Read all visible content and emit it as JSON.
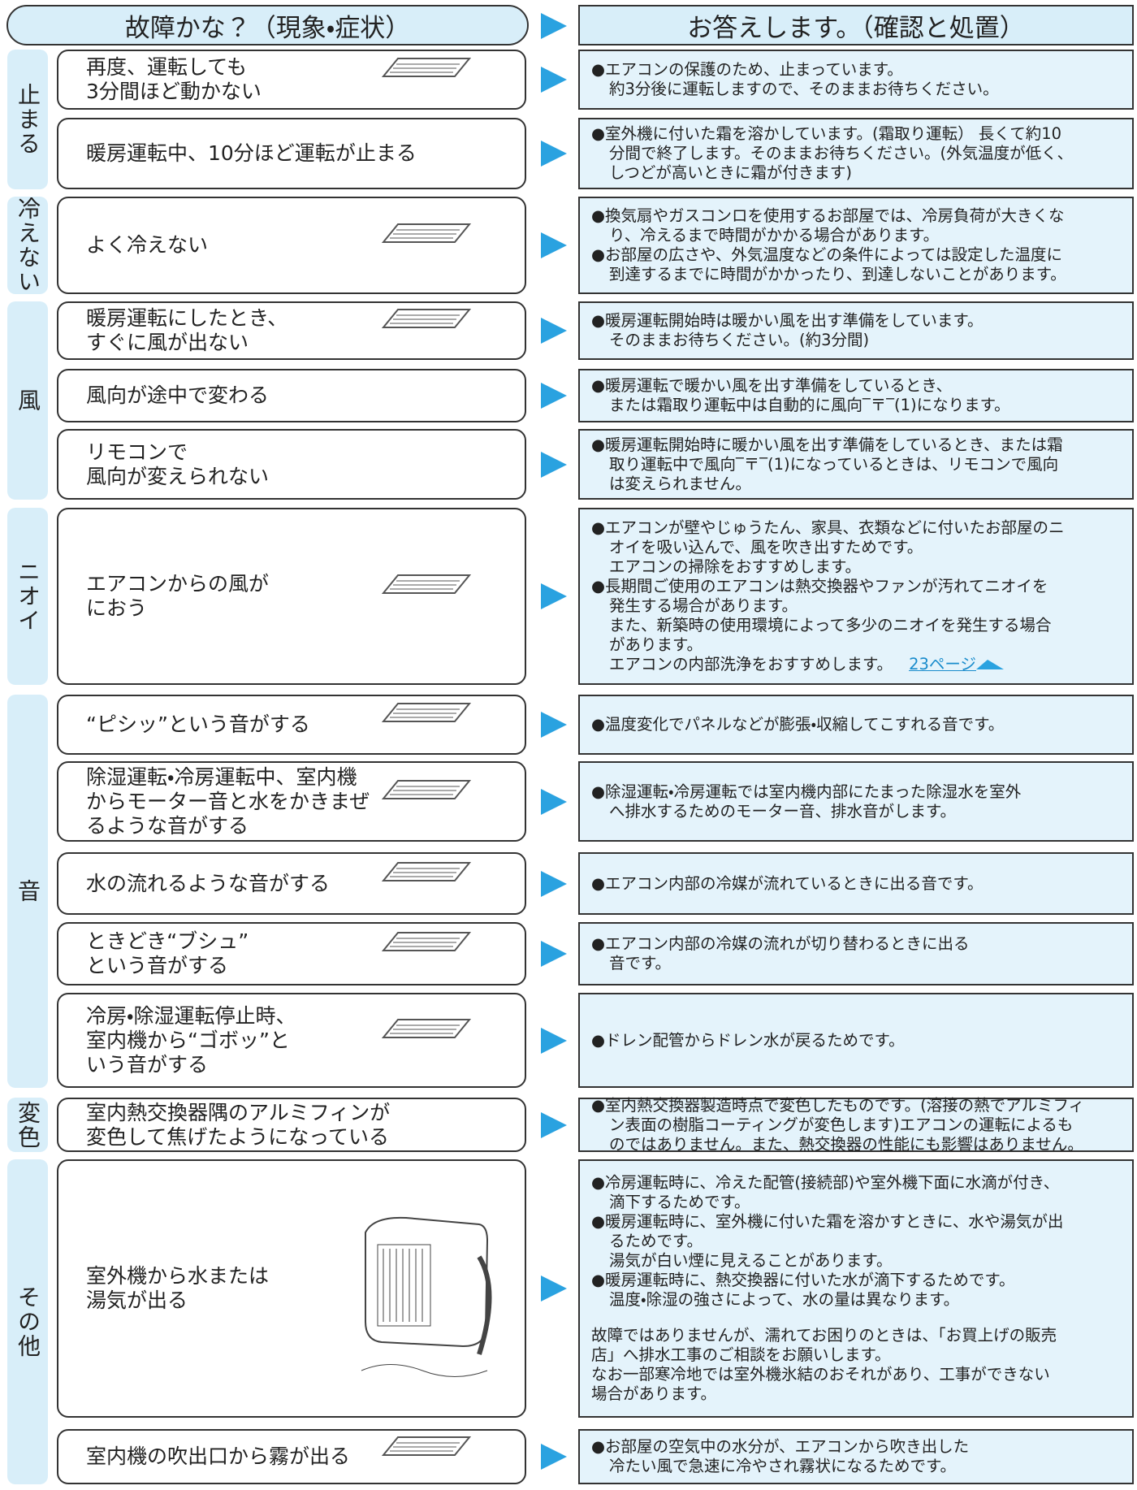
{
  "header": {
    "left": "故障かな？（現象・症状）",
    "right": "お答えします。（確認と処置）"
  },
  "groups": [
    {
      "label": "止まる",
      "rows": [
        {
          "symptom": [
            "再度、運転しても",
            "3分間ほど動かない"
          ],
          "answer": [
            "●エアコンの保護のため、止まっています。",
            "約3分後に運転しますので、そのままお待ちください。"
          ]
        },
        {
          "symptom": [
            "暖房運転中、10分ほど運転が止まる"
          ],
          "answer": [
            "●室外機に付いた霜を溶かしています。(霜取り運転） 長くて約10",
            "分間で終了します。そのままお待ちください。(外気温度が低く、",
            "しつどが高いときに霜が付きます)"
          ]
        }
      ]
    },
    {
      "label": "冷えない",
      "rows": [
        {
          "symptom": [
            "よく冷えない"
          ],
          "answer": [
            "●換気扇やガスコンロを使用するお部屋では、冷房負荷が大きくな",
            "り、冷えるまで時間がかかる場合があります。",
            "●お部屋の広さや、外気温度などの条件によっては設定した温度に",
            "到達するまでに時間がかかったり、到達しないことがあります。"
          ]
        }
      ]
    },
    {
      "label": "風",
      "rows": [
        {
          "symptom": [
            "暖房運転にしたとき、",
            "すぐに風が出ない"
          ],
          "answer": [
            "●暖房運転開始時は暖かい風を出す準備をしています。",
            "そのままお待ちください。(約3分間)"
          ]
        },
        {
          "symptom": [
            "風向が途中で変わる"
          ],
          "answer": [
            "●暖房運転で暖かい風を出す準備をしているとき、",
            "または霜取り運転中は自動的に風向‾〒‾(1)になります。"
          ]
        },
        {
          "symptom": [
            "リモコンで",
            "風向が変えられない"
          ],
          "answer": [
            "●暖房運転開始時に暖かい風を出す準備をしているとき、または霜",
            "取り運転中で風向‾〒‾(1)になっているときは、リモコンで風向",
            "は変えられません。"
          ]
        }
      ]
    },
    {
      "label": "ニオイ",
      "rows": [
        {
          "symptom": [
            "エアコンからの風が",
            "におう"
          ],
          "answer": [
            "●エアコンが壁やじゅうたん、家具、衣類などに付いたお部屋のニ",
            "オイを吸い込んで、風を吹き出すためです。",
            "エアコンの掃除をおすすめします。",
            "●長期間ご使用のエアコンは熱交換器やファンが汚れてニオイを",
            "発生する場合があります。",
            "また、新築時の使用環境によって多少のニオイを発生する場合",
            "があります。",
            "エアコンの内部洗浄をおすすめします。"
          ],
          "link": "23ページ"
        }
      ]
    },
    {
      "label": "音",
      "rows": [
        {
          "symptom": [
            "“ピシッ”という音がする"
          ],
          "answer": [
            "●温度変化でパネルなどが膨張・収縮してこすれる音です。"
          ]
        },
        {
          "symptom": [
            "除湿運転・冷房運転中、室内機",
            "からモーター音と水をかきまぜ",
            "るような音がする"
          ],
          "answer": [
            "●除湿運転・冷房運転では室内機内部にたまった除湿水を室外",
            "へ排水するためのモーター音、排水音がします。"
          ]
        },
        {
          "symptom": [
            "水の流れるような音がする"
          ],
          "answer": [
            "●エアコン内部の冷媒が流れているときに出る音です。"
          ]
        },
        {
          "symptom": [
            "ときどき“ブシュ”",
            "という音がする"
          ],
          "answer": [
            "●エアコン内部の冷媒の流れが切り替わるときに出る",
            "音です。"
          ]
        },
        {
          "symptom": [
            "冷房・除湿運転停止時、",
            "室内機から“ゴボッ”と",
            "いう音がする"
          ],
          "answer": [
            "●ドレン配管からドレン水が戻るためです。"
          ]
        }
      ]
    },
    {
      "label": "変色",
      "rows": [
        {
          "symptom": [
            "室内熱交換器隅のアルミフィンが",
            "変色して焦げたようになっている"
          ],
          "answer": [
            "●室内熱交換器製造時点で変色したものです。(溶接の熱でアルミフィ",
            "ン表面の樹脂コーティングが変色します)エアコンの運転によるも",
            "のではありません。また、熱交換器の性能にも影響はありません。"
          ]
        }
      ]
    },
    {
      "label": "その他",
      "rows": [
        {
          "symptom": [
            "室外機から水または",
            "湯気が出る"
          ],
          "answer": [
            "●冷房運転時に、冷えた配管(接続部)や室外機下面に水滴が付き、",
            "滴下するためです。",
            "●暖房運転時に、室外機に付いた霜を溶かすときに、水や湯気が出",
            "るためです。",
            "湯気が白い煙に見えることがあります。",
            "●暖房運転時に、熱交換器に付いた水が滴下するためです。",
            "温度・除湿の強さによって、水の量は異なります。"
          ],
          "note": [
            "故障ではありませんが、濡れてお困りのときは、「お買上げの販売",
            "店」へ排水工事のご相談をお願いします。",
            "なお一部寒冷地では室外機氷結のおそれがあり、工事ができない",
            "場合があります。"
          ]
        },
        {
          "symptom": [
            "室内機の吹出口から霧が出る"
          ],
          "answer": [
            "●お部屋の空気中の水分が、エアコンから吹き出した",
            "冷たい風で急速に冷やされ霧状になるためです。"
          ]
        }
      ]
    }
  ]
}
